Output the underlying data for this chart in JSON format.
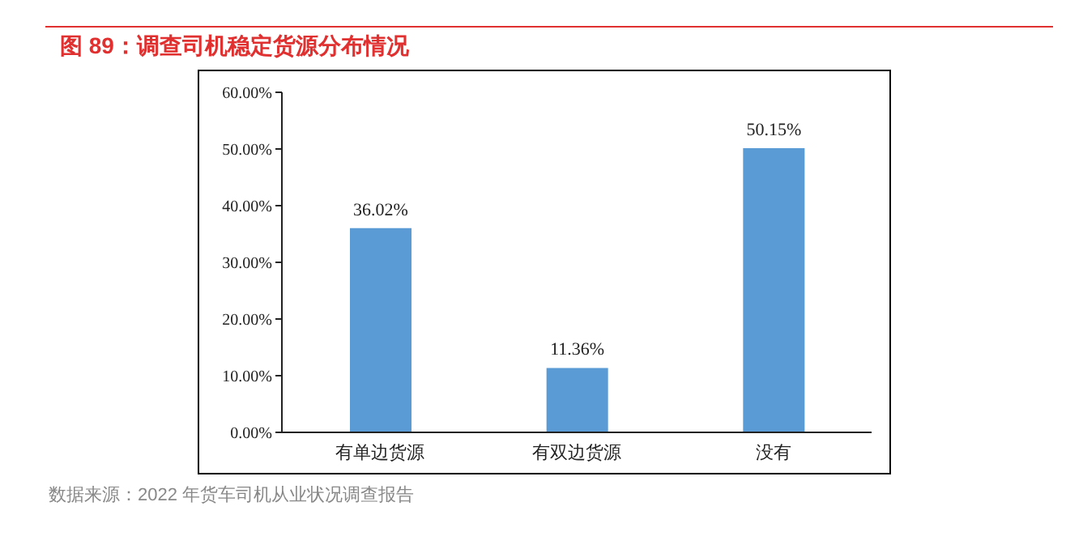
{
  "chart_data": {
    "type": "bar",
    "title": "图 89：调查司机稳定货源分布情况",
    "categories": [
      "有单边货源",
      "有双边货源",
      "没有"
    ],
    "values": [
      36.02,
      11.36,
      50.15
    ],
    "value_labels": [
      "36.02%",
      "11.36%",
      "50.15%"
    ],
    "color": "#5b9bd5",
    "ylim": [
      0,
      60
    ],
    "yticks": [
      {
        "value": 0,
        "label": "0.00%"
      },
      {
        "value": 10,
        "label": "10.00%"
      },
      {
        "value": 20,
        "label": "20.00%"
      },
      {
        "value": 30,
        "label": "30.00%"
      },
      {
        "value": 40,
        "label": "40.00%"
      },
      {
        "value": 50,
        "label": "50.00%"
      },
      {
        "value": 60,
        "label": "60.00%"
      }
    ],
    "grid": false,
    "legend": false,
    "annotations": [
      "数据来源：2022 年货车司机从业状况调查报告"
    ]
  }
}
